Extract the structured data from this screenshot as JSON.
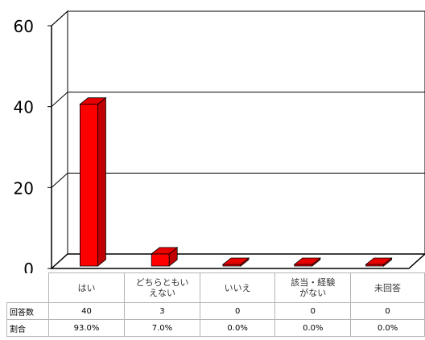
{
  "chart_data": {
    "type": "bar",
    "categories": [
      "はい",
      "どちらともいえない",
      "いいえ",
      "該当・経験がない",
      "未回答"
    ],
    "category_lines": [
      [
        "はい"
      ],
      [
        "どちらともい",
        "えない"
      ],
      [
        "いいえ"
      ],
      [
        "該当・経験",
        "がない"
      ],
      [
        "未回答"
      ]
    ],
    "values": [
      40,
      3,
      0,
      0,
      0
    ],
    "ylim": [
      0,
      60
    ],
    "yticks": [
      "0",
      "20",
      "40",
      "60"
    ],
    "bar_color": "#ff0000",
    "bar_side_color": "#c00000",
    "bar_top_color": "#e80000",
    "grid": true,
    "three_d": true
  },
  "table": {
    "row_labels": {
      "count": "回答数",
      "ratio": "割合"
    },
    "counts": [
      "40",
      "3",
      "0",
      "0",
      "0"
    ],
    "ratios": [
      "93.0%",
      "7.0%",
      "0.0%",
      "0.0%",
      "0.0%"
    ]
  }
}
